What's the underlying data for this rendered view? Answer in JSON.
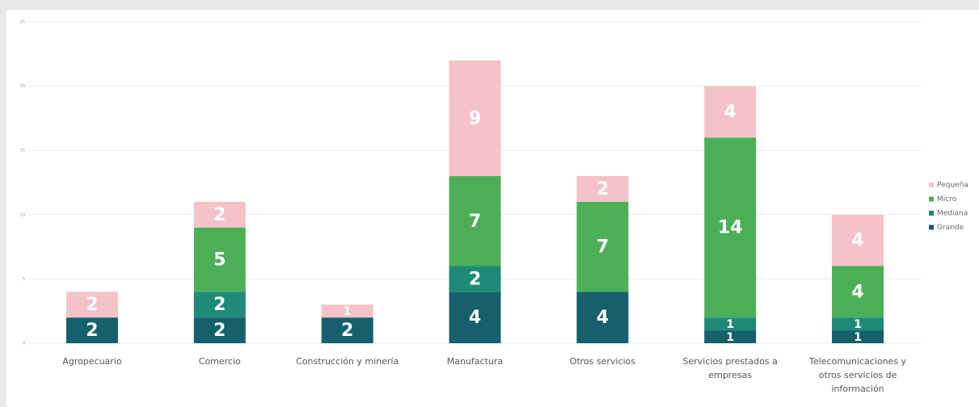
{
  "chart_data": {
    "type": "bar",
    "stacked": true,
    "categories": [
      "Agropecuario",
      "Comercio",
      "Construcción y minería",
      "Manufactura",
      "Otros servicios",
      "Servicios prestados a empresas",
      "Telecomunicaciones y otros servicios de información"
    ],
    "series": [
      {
        "name": "Grande",
        "color": "#15606b",
        "values": [
          2,
          2,
          2,
          4,
          4,
          1,
          1
        ]
      },
      {
        "name": "Mediana",
        "color": "#1f8a78",
        "values": [
          0,
          2,
          0,
          2,
          0,
          1,
          1
        ]
      },
      {
        "name": "Micro",
        "color": "#4caf58",
        "values": [
          0,
          5,
          0,
          7,
          7,
          14,
          4
        ]
      },
      {
        "name": "Pequeña",
        "color": "#f4c3c8",
        "values": [
          2,
          2,
          1,
          9,
          2,
          4,
          4
        ]
      }
    ],
    "ylim": [
      0,
      25
    ],
    "yticks": [
      0,
      5,
      10,
      15,
      20,
      25
    ],
    "grid": true,
    "legend": "right"
  }
}
